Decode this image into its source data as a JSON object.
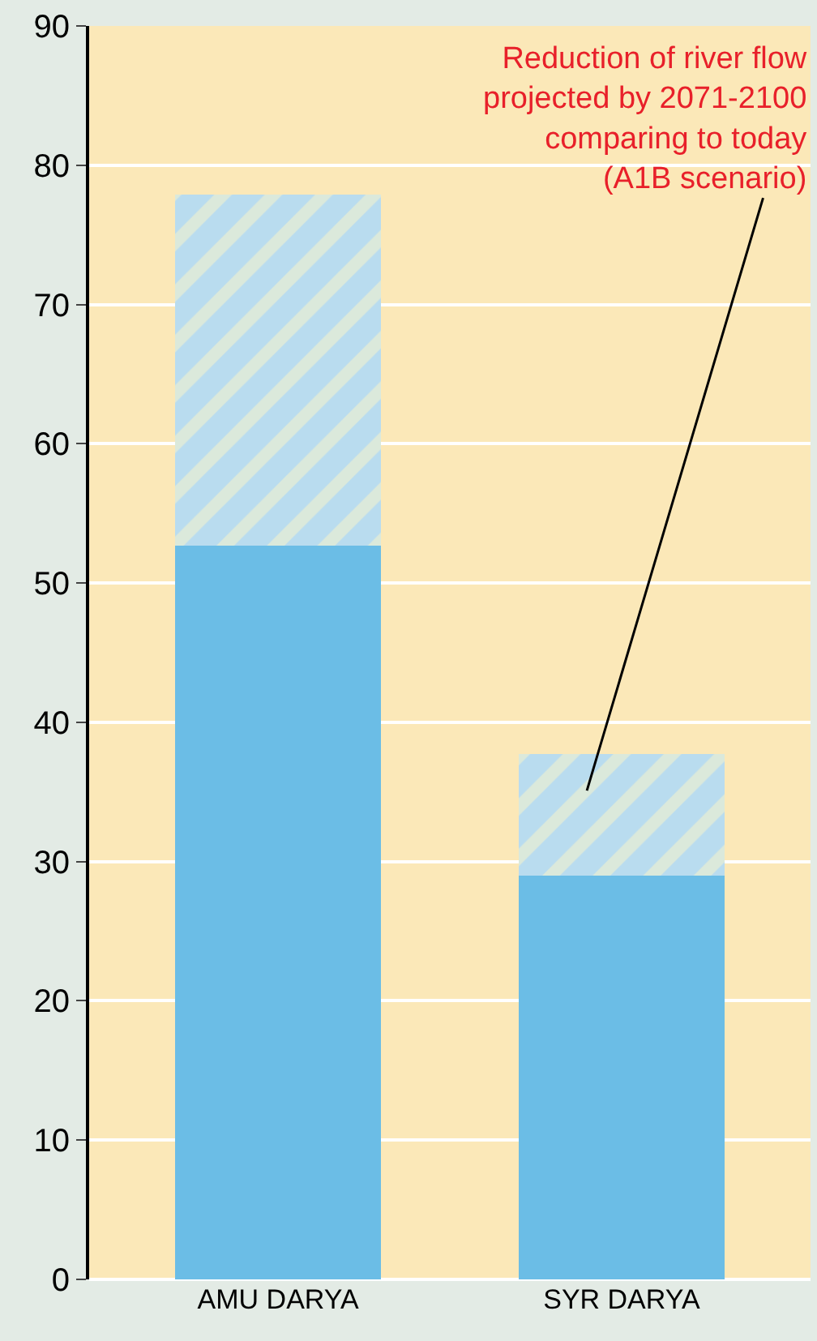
{
  "chart_data": {
    "type": "bar",
    "stacked": true,
    "categories": [
      "AMU DARYA",
      "SYR DARYA"
    ],
    "series": [
      {
        "color": "#6bbde6",
        "values": [
          52.7,
          29.0
        ]
      },
      {
        "color": "#b9dcef",
        "values": [
          25.2,
          8.7
        ]
      }
    ],
    "ylim": [
      0,
      90
    ],
    "yticks": [
      0,
      10,
      20,
      30,
      40,
      50,
      60,
      70,
      80,
      90
    ],
    "grid": "y",
    "annotations": [
      "Reduction of river flow\nprojected by 2071-2100\ncomparing to today\n(A1B scenario)"
    ]
  }
}
